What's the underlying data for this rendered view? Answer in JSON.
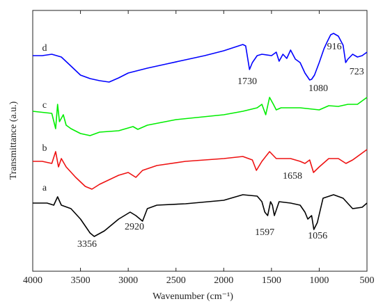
{
  "chart_data": {
    "type": "line",
    "xlabel": "Wavenumber (cm⁻¹)",
    "ylabel": "Transmittance (a.u.)",
    "xlim": [
      4000,
      500
    ],
    "ylim": [
      0,
      375
    ],
    "xticks": [
      4000,
      3500,
      3000,
      2500,
      2000,
      1500,
      1000,
      500
    ],
    "series": [
      {
        "name": "d",
        "color": "#0000ff",
        "x": [
          4000,
          3900,
          3800,
          3750,
          3700,
          3600,
          3500,
          3400,
          3300,
          3200,
          3100,
          3000,
          2800,
          2600,
          2400,
          2200,
          2000,
          1800,
          1770,
          1730,
          1700,
          1650,
          1600,
          1500,
          1450,
          1420,
          1380,
          1340,
          1300,
          1250,
          1200,
          1150,
          1100,
          1080,
          1050,
          1000,
          950,
          916,
          880,
          850,
          800,
          750,
          723,
          700,
          650,
          600,
          550,
          500
        ],
        "values": [
          310,
          310,
          312,
          310,
          308,
          295,
          282,
          277,
          274,
          272,
          278,
          285,
          292,
          298,
          304,
          310,
          317,
          326,
          324,
          290,
          300,
          310,
          312,
          310,
          315,
          302,
          312,
          306,
          318,
          305,
          300,
          285,
          275,
          276,
          282,
          300,
          320,
          330,
          340,
          342,
          338,
          325,
          300,
          305,
          312,
          308,
          310,
          315
        ]
      },
      {
        "name": "c",
        "color": "#00ee00",
        "x": [
          4000,
          3800,
          3760,
          3740,
          3720,
          3680,
          3650,
          3600,
          3500,
          3400,
          3300,
          3100,
          2950,
          2900,
          2800,
          2500,
          2000,
          1800,
          1650,
          1600,
          1560,
          1520,
          1480,
          1450,
          1400,
          1200,
          1000,
          900,
          800,
          700,
          600,
          500
        ],
        "values": [
          230,
          227,
          205,
          240,
          215,
          225,
          210,
          205,
          198,
          195,
          200,
          202,
          208,
          204,
          210,
          218,
          225,
          230,
          235,
          240,
          225,
          250,
          240,
          232,
          235,
          235,
          232,
          238,
          237,
          240,
          240,
          250
        ]
      },
      {
        "name": "b",
        "color": "#ee1111",
        "x": [
          4000,
          3900,
          3800,
          3760,
          3730,
          3700,
          3650,
          3550,
          3450,
          3380,
          3300,
          3100,
          3000,
          2920,
          2850,
          2700,
          2400,
          2000,
          1800,
          1700,
          1658,
          1600,
          1520,
          1450,
          1300,
          1200,
          1150,
          1100,
          1060,
          1000,
          900,
          800,
          720,
          650,
          500
        ],
        "values": [
          158,
          158,
          155,
          172,
          150,
          162,
          150,
          135,
          122,
          118,
          125,
          138,
          142,
          135,
          145,
          152,
          158,
          162,
          165,
          160,
          145,
          158,
          172,
          162,
          162,
          158,
          155,
          160,
          142,
          150,
          162,
          162,
          155,
          160,
          175
        ]
      },
      {
        "name": "a",
        "color": "#000000",
        "x": [
          4000,
          3850,
          3780,
          3740,
          3700,
          3600,
          3500,
          3400,
          3356,
          3250,
          3100,
          2980,
          2920,
          2850,
          2800,
          2700,
          2400,
          2000,
          1800,
          1650,
          1600,
          1570,
          1540,
          1510,
          1490,
          1470,
          1420,
          1300,
          1200,
          1150,
          1120,
          1080,
          1056,
          1020,
          960,
          850,
          750,
          650,
          550,
          500
        ],
        "values": [
          98,
          98,
          95,
          107,
          95,
          90,
          75,
          55,
          50,
          58,
          75,
          85,
          80,
          72,
          90,
          95,
          97,
          102,
          110,
          108,
          100,
          85,
          80,
          100,
          95,
          80,
          100,
          98,
          95,
          85,
          75,
          80,
          60,
          70,
          105,
          110,
          105,
          90,
          92,
          98
        ]
      }
    ],
    "annotations": [
      {
        "text": "3356",
        "x": 3431,
        "y": 38
      },
      {
        "text": "2920",
        "x": 2935,
        "y": 63
      },
      {
        "text": "1597",
        "x": 1571,
        "y": 55
      },
      {
        "text": "1056",
        "x": 1017,
        "y": 50
      },
      {
        "text": "1658",
        "x": 1280,
        "y": 136
      },
      {
        "text": "1730",
        "x": 1754,
        "y": 272
      },
      {
        "text": "1080",
        "x": 1010,
        "y": 262
      },
      {
        "text": "916",
        "x": 842,
        "y": 322
      },
      {
        "text": "723",
        "x": 608,
        "y": 286
      }
    ]
  }
}
